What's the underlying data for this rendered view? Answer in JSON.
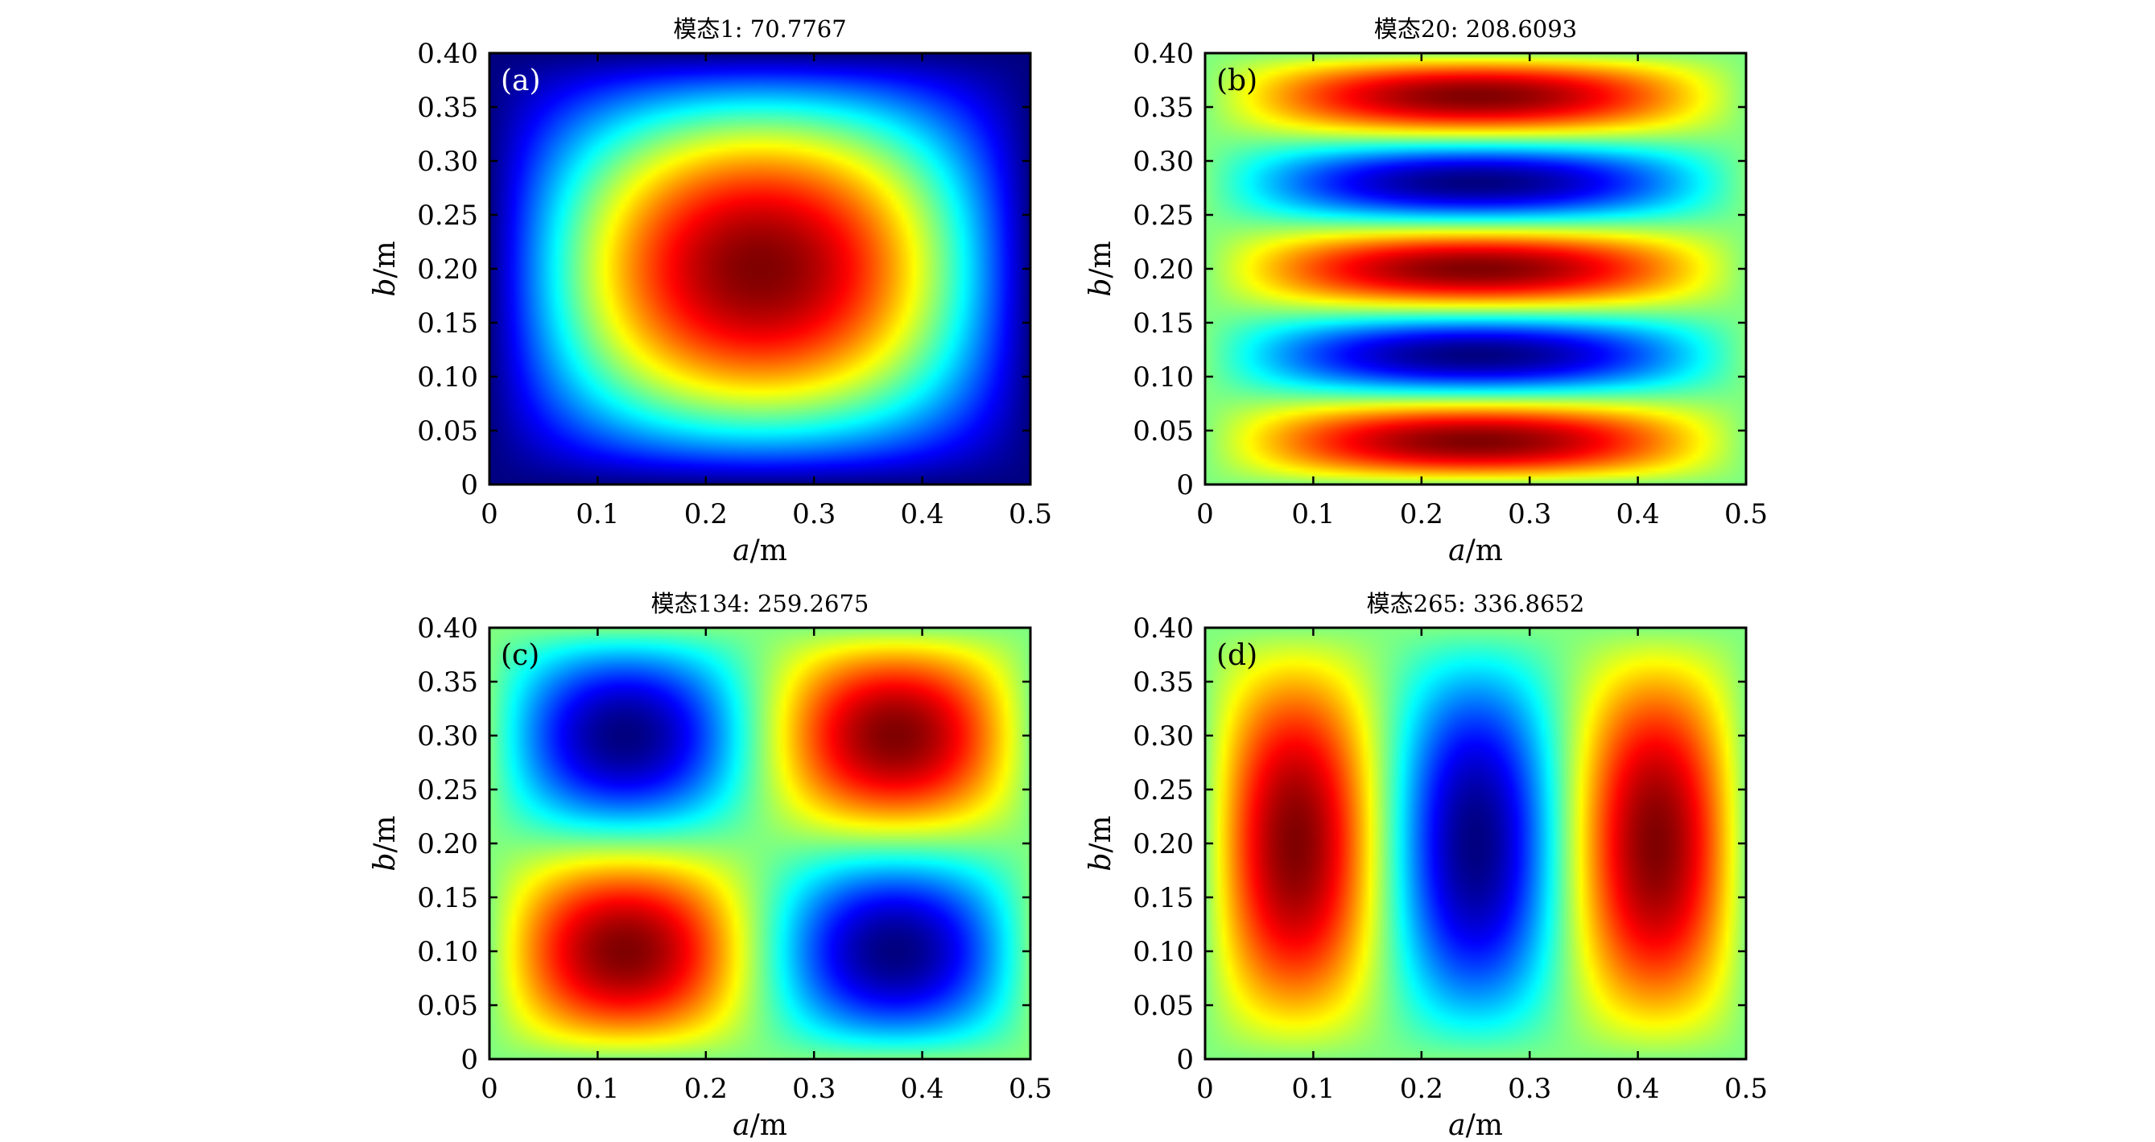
{
  "chart_data": [
    {
      "type": "heatmap",
      "panel": "(a)",
      "title": "模态1: 70.7767",
      "mode": [
        1,
        1
      ],
      "colormap": "jet",
      "xlabel": "a/m",
      "ylabel": "b/m",
      "xlim": [
        0,
        0.5
      ],
      "ylim": [
        0,
        0.4
      ],
      "xticks": [
        "0",
        "0.1",
        "0.2",
        "0.3",
        "0.4",
        "0.5"
      ],
      "yticks": [
        "0",
        "0.05",
        "0.10",
        "0.15",
        "0.20",
        "0.25",
        "0.30",
        "0.35",
        "0.40"
      ],
      "color_range": [
        0,
        1
      ]
    },
    {
      "type": "heatmap",
      "panel": "(b)",
      "title": "模态20: 208.6093",
      "mode": [
        1,
        5
      ],
      "colormap": "jet",
      "xlabel": "a/m",
      "ylabel": "b/m",
      "xlim": [
        0,
        0.5
      ],
      "ylim": [
        0,
        0.4
      ],
      "xticks": [
        "0",
        "0.1",
        "0.2",
        "0.3",
        "0.4",
        "0.5"
      ],
      "yticks": [
        "0",
        "0.05",
        "0.10",
        "0.15",
        "0.20",
        "0.25",
        "0.30",
        "0.35",
        "0.40"
      ],
      "color_range": [
        -1,
        1
      ]
    },
    {
      "type": "heatmap",
      "panel": "(c)",
      "title": "模态134: 259.2675",
      "mode": [
        2,
        2
      ],
      "colormap": "jet",
      "xlabel": "a/m",
      "ylabel": "b/m",
      "xlim": [
        0,
        0.5
      ],
      "ylim": [
        0,
        0.4
      ],
      "xticks": [
        "0",
        "0.1",
        "0.2",
        "0.3",
        "0.4",
        "0.5"
      ],
      "yticks": [
        "0",
        "0.05",
        "0.10",
        "0.15",
        "0.20",
        "0.25",
        "0.30",
        "0.35",
        "0.40"
      ],
      "color_range": [
        -1,
        1
      ]
    },
    {
      "type": "heatmap",
      "panel": "(d)",
      "title": "模态265: 336.8652",
      "mode": [
        3,
        1
      ],
      "colormap": "jet",
      "xlabel": "a/m",
      "ylabel": "b/m",
      "xlim": [
        0,
        0.5
      ],
      "ylim": [
        0,
        0.4
      ],
      "xticks": [
        "0",
        "0.1",
        "0.2",
        "0.3",
        "0.4",
        "0.5"
      ],
      "yticks": [
        "0",
        "0.05",
        "0.10",
        "0.15",
        "0.20",
        "0.25",
        "0.30",
        "0.35",
        "0.40"
      ],
      "color_range": [
        -1,
        1
      ]
    }
  ]
}
